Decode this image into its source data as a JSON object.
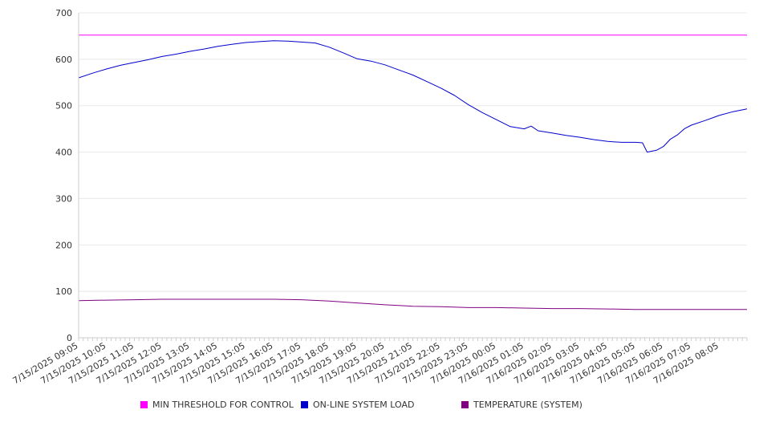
{
  "chart_data": {
    "type": "line",
    "ylim": [
      0,
      700
    ],
    "yticks": [
      0,
      100,
      200,
      300,
      400,
      500,
      600,
      700
    ],
    "x_tick_labels": [
      "7/15/2025 09:05",
      "7/15/2025 10:05",
      "7/15/2025 11:05",
      "7/15/2025 12:05",
      "7/15/2025 13:05",
      "7/15/2025 14:05",
      "7/15/2025 15:05",
      "7/15/2025 16:05",
      "7/15/2025 17:05",
      "7/15/2025 18:05",
      "7/15/2025 19:05",
      "7/15/2025 20:05",
      "7/15/2025 21:05",
      "7/15/2025 22:05",
      "7/15/2025 23:05",
      "7/16/2025 00:05",
      "7/16/2025 01:05",
      "7/16/2025 02:05",
      "7/16/2025 03:05",
      "7/16/2025 04:05",
      "7/16/2025 05:05",
      "7/16/2025 06:05",
      "7/16/2025 07:05",
      "7/16/2025 08:05"
    ],
    "x_range": [
      "7/15/2025 09:05",
      "7/16/2025 09:05"
    ],
    "grid": true,
    "legend_position": "bottom",
    "series": [
      {
        "name": "MIN THRESHOLD FOR CONTROL",
        "color": "#ff00ff",
        "points": [
          [
            "7/15/2025 09:05",
            652
          ],
          [
            "7/16/2025 09:05",
            652
          ]
        ]
      },
      {
        "name": "ON-LINE SYSTEM LOAD",
        "color": "#0000cc",
        "points": [
          [
            "7/15/2025 09:05",
            560
          ],
          [
            "7/15/2025 09:35",
            570
          ],
          [
            "7/15/2025 10:05",
            579
          ],
          [
            "7/15/2025 10:35",
            587
          ],
          [
            "7/15/2025 11:05",
            593
          ],
          [
            "7/15/2025 11:35",
            599
          ],
          [
            "7/15/2025 12:05",
            606
          ],
          [
            "7/15/2025 12:35",
            611
          ],
          [
            "7/15/2025 13:05",
            617
          ],
          [
            "7/15/2025 13:35",
            622
          ],
          [
            "7/15/2025 14:05",
            628
          ],
          [
            "7/15/2025 14:35",
            632
          ],
          [
            "7/15/2025 15:05",
            636
          ],
          [
            "7/15/2025 15:35",
            638
          ],
          [
            "7/15/2025 16:05",
            640
          ],
          [
            "7/15/2025 16:35",
            639
          ],
          [
            "7/15/2025 17:05",
            637
          ],
          [
            "7/15/2025 17:35",
            635
          ],
          [
            "7/15/2025 18:05",
            626
          ],
          [
            "7/15/2025 18:35",
            614
          ],
          [
            "7/15/2025 19:05",
            601
          ],
          [
            "7/15/2025 19:35",
            596
          ],
          [
            "7/15/2025 20:05",
            588
          ],
          [
            "7/15/2025 20:35",
            577
          ],
          [
            "7/15/2025 21:05",
            566
          ],
          [
            "7/15/2025 21:35",
            552
          ],
          [
            "7/15/2025 22:05",
            538
          ],
          [
            "7/15/2025 22:35",
            522
          ],
          [
            "7/15/2025 23:05",
            502
          ],
          [
            "7/15/2025 23:35",
            485
          ],
          [
            "7/16/2025 00:05",
            470
          ],
          [
            "7/16/2025 00:35",
            455
          ],
          [
            "7/16/2025 01:05",
            450
          ],
          [
            "7/16/2025 01:20",
            456
          ],
          [
            "7/16/2025 01:35",
            446
          ],
          [
            "7/16/2025 02:05",
            441
          ],
          [
            "7/16/2025 02:35",
            436
          ],
          [
            "7/16/2025 03:05",
            432
          ],
          [
            "7/16/2025 03:35",
            427
          ],
          [
            "7/16/2025 04:05",
            423
          ],
          [
            "7/16/2025 04:35",
            421
          ],
          [
            "7/16/2025 05:05",
            421
          ],
          [
            "7/16/2025 05:20",
            420
          ],
          [
            "7/16/2025 05:30",
            400
          ],
          [
            "7/16/2025 05:50",
            404
          ],
          [
            "7/16/2025 06:05",
            412
          ],
          [
            "7/16/2025 06:20",
            428
          ],
          [
            "7/16/2025 06:35",
            437
          ],
          [
            "7/16/2025 06:50",
            450
          ],
          [
            "7/16/2025 07:05",
            458
          ],
          [
            "7/16/2025 07:35",
            468
          ],
          [
            "7/16/2025 08:05",
            479
          ],
          [
            "7/16/2025 08:35",
            487
          ],
          [
            "7/16/2025 09:05",
            493
          ]
        ]
      },
      {
        "name": "TEMPERATURE (SYSTEM)",
        "color": "#800080",
        "points": [
          [
            "7/15/2025 09:05",
            80
          ],
          [
            "7/15/2025 10:05",
            81
          ],
          [
            "7/15/2025 11:05",
            82
          ],
          [
            "7/15/2025 12:05",
            83
          ],
          [
            "7/15/2025 13:05",
            83
          ],
          [
            "7/15/2025 14:05",
            83
          ],
          [
            "7/15/2025 15:05",
            83
          ],
          [
            "7/15/2025 16:05",
            83
          ],
          [
            "7/15/2025 17:05",
            82
          ],
          [
            "7/15/2025 18:05",
            79
          ],
          [
            "7/15/2025 19:05",
            75
          ],
          [
            "7/15/2025 20:05",
            71
          ],
          [
            "7/15/2025 21:05",
            68
          ],
          [
            "7/15/2025 22:05",
            67
          ],
          [
            "7/15/2025 23:05",
            65
          ],
          [
            "7/16/2025 00:05",
            65
          ],
          [
            "7/16/2025 01:05",
            64
          ],
          [
            "7/16/2025 02:05",
            63
          ],
          [
            "7/16/2025 03:05",
            63
          ],
          [
            "7/16/2025 04:05",
            62
          ],
          [
            "7/16/2025 05:05",
            61
          ],
          [
            "7/16/2025 06:05",
            61
          ],
          [
            "7/16/2025 07:05",
            61
          ],
          [
            "7/16/2025 08:05",
            61
          ],
          [
            "7/16/2025 09:05",
            61
          ]
        ]
      }
    ]
  }
}
